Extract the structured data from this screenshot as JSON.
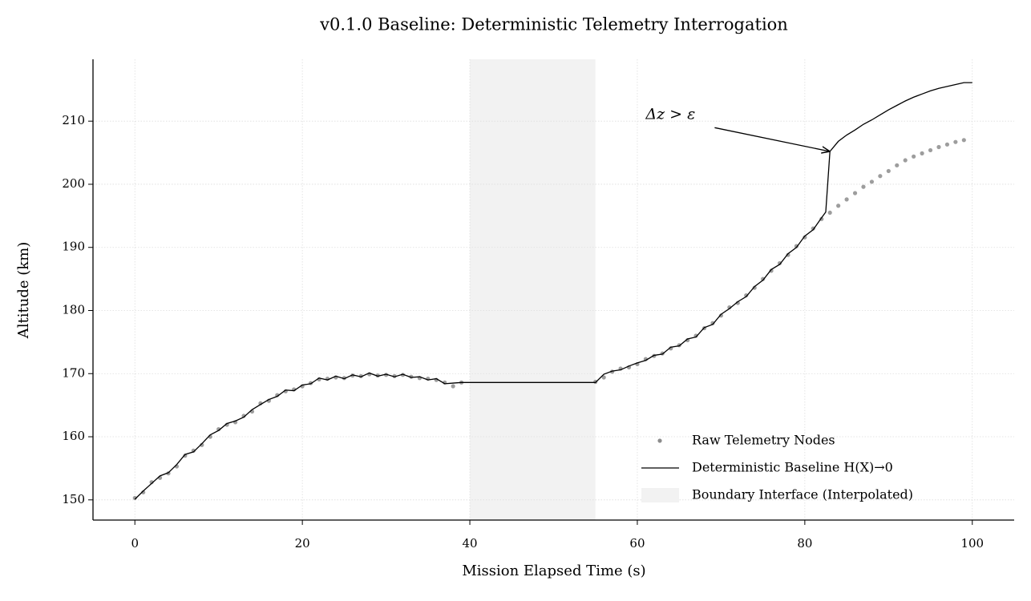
{
  "chart_data": {
    "type": "line",
    "title": "v0.1.0 Baseline: Deterministic Telemetry Interrogation",
    "x_label": "Mission Elapsed Time (s)",
    "y_label": "Altitude (km)",
    "xlim": [
      -5,
      105
    ],
    "ylim": [
      146.8,
      219.8
    ],
    "xticks": [
      0,
      20,
      40,
      60,
      80,
      100
    ],
    "yticks": [
      150,
      160,
      170,
      180,
      190,
      200,
      210
    ],
    "grid": true,
    "legend": "lower right",
    "span": {
      "label": "Boundary Interface (Interpolated)",
      "x0": 40,
      "x1": 55,
      "color": "#f2f2f2"
    },
    "annotation": {
      "text": "Δz > ε",
      "x": 83,
      "y": 205.2,
      "text_x": 61,
      "text_y": 211
    },
    "series": [
      {
        "name": "Raw Telemetry Nodes",
        "type": "scatter",
        "color": "#8c8c8c",
        "x": [
          0,
          1,
          2,
          3,
          4,
          5,
          6,
          7,
          8,
          9,
          10,
          11,
          12,
          13,
          14,
          15,
          16,
          17,
          18,
          19,
          20,
          21,
          22,
          23,
          24,
          25,
          26,
          27,
          28,
          29,
          30,
          31,
          32,
          33,
          34,
          35,
          36,
          37,
          38,
          39,
          55,
          56,
          57,
          58,
          59,
          60,
          61,
          62,
          63,
          64,
          65,
          66,
          67,
          68,
          69,
          70,
          71,
          72,
          73,
          74,
          75,
          76,
          77,
          78,
          79,
          80,
          81,
          82,
          83,
          84,
          85,
          86,
          87,
          88,
          89,
          90,
          91,
          92,
          93,
          94,
          95,
          96,
          97,
          98,
          99
        ],
        "values": [
          150.3,
          151.2,
          152.8,
          153.5,
          154.2,
          155.3,
          157.0,
          157.8,
          158.7,
          160.0,
          161.2,
          161.9,
          162.3,
          163.3,
          164.0,
          165.3,
          165.7,
          166.6,
          167.2,
          167.5,
          168.0,
          168.5,
          169.1,
          169.2,
          169.4,
          169.3,
          169.7,
          169.6,
          169.9,
          169.7,
          169.8,
          169.6,
          169.8,
          169.5,
          169.3,
          169.2,
          169.0,
          168.6,
          168.0,
          168.6,
          168.7,
          169.4,
          170.3,
          170.8,
          171.0,
          171.5,
          172.3,
          172.8,
          173.2,
          174.0,
          174.5,
          175.3,
          176.0,
          177.2,
          178.0,
          179.2,
          180.5,
          181.2,
          182.4,
          183.6,
          185.0,
          186.3,
          187.5,
          188.8,
          190.2,
          191.6,
          193.0,
          194.5,
          195.5,
          196.6,
          197.6,
          198.6,
          199.6,
          200.4,
          201.3,
          202.1,
          203.0,
          203.8,
          204.4,
          204.9,
          205.4,
          205.9,
          206.3,
          206.7,
          207.0
        ]
      },
      {
        "name": "Deterministic Baseline H(X)→0",
        "type": "line",
        "color": "#000000",
        "x": [
          0,
          1,
          2,
          3,
          4,
          5,
          6,
          7,
          8,
          9,
          10,
          11,
          12,
          13,
          14,
          15,
          16,
          17,
          18,
          19,
          20,
          21,
          22,
          23,
          24,
          25,
          26,
          27,
          28,
          29,
          30,
          31,
          32,
          33,
          34,
          35,
          36,
          37,
          38,
          39,
          40,
          55,
          56,
          57,
          58,
          59,
          60,
          61,
          62,
          63,
          64,
          65,
          66,
          67,
          68,
          69,
          70,
          71,
          72,
          73,
          74,
          75,
          76,
          77,
          78,
          79,
          80,
          81,
          82,
          82.5,
          83,
          84,
          85,
          86,
          87,
          88,
          89,
          90,
          91,
          92,
          93,
          94,
          95,
          96,
          97,
          98,
          99,
          100
        ],
        "values": [
          150.1,
          151.4,
          152.6,
          153.8,
          154.3,
          155.6,
          157.2,
          157.6,
          158.9,
          160.3,
          161.0,
          162.1,
          162.5,
          163.1,
          164.3,
          165.1,
          165.9,
          166.4,
          167.4,
          167.3,
          168.2,
          168.4,
          169.3,
          169.0,
          169.6,
          169.2,
          169.8,
          169.5,
          170.1,
          169.6,
          169.9,
          169.5,
          169.9,
          169.4,
          169.5,
          169.0,
          169.2,
          168.4,
          168.5,
          168.6,
          168.6,
          168.6,
          169.9,
          170.4,
          170.6,
          171.2,
          171.7,
          172.1,
          172.9,
          173.1,
          174.2,
          174.4,
          175.5,
          175.8,
          177.3,
          177.8,
          179.4,
          180.3,
          181.4,
          182.2,
          183.8,
          184.8,
          186.5,
          187.3,
          189.0,
          190.0,
          191.8,
          192.8,
          194.7,
          195.6,
          205.2,
          206.8,
          207.8,
          208.6,
          209.5,
          210.2,
          211.0,
          211.8,
          212.5,
          213.2,
          213.8,
          214.3,
          214.8,
          215.2,
          215.5,
          215.8,
          216.1,
          216.1
        ]
      }
    ]
  }
}
